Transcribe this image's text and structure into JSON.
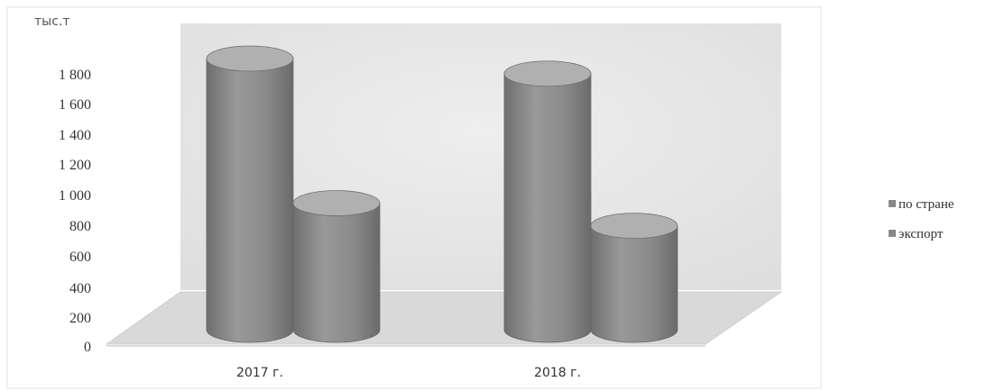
{
  "chart_data": {
    "type": "bar",
    "style": "3d-cylinder",
    "unit_label": "тыс.т",
    "categories": [
      "2017 г.",
      "2018 г."
    ],
    "series": [
      {
        "name": "по стране",
        "values": [
          1800,
          1700
        ]
      },
      {
        "name": "экспорт",
        "values": [
          840,
          690
        ]
      }
    ],
    "yticks": [
      "0",
      "200",
      "400",
      "600",
      "800",
      "1 000",
      "1 200",
      "1 400",
      "1 600",
      "1 800"
    ],
    "ylim": [
      0,
      1800
    ],
    "legend_position": "right",
    "grid": false,
    "colors": {
      "bar": "#8c8c8c",
      "bar_dark": "#6e6e6e",
      "bar_light": "#b0b0b0",
      "back_wall": "#e6e6e6",
      "floor": "#d9d9d9",
      "legend_marker": "#888888"
    }
  }
}
